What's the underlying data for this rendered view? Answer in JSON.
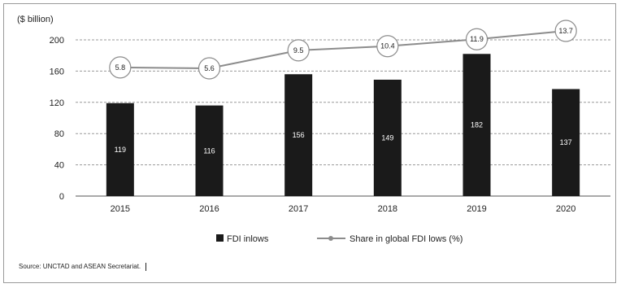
{
  "chart_data": {
    "type": "bar",
    "categories": [
      "2015",
      "2016",
      "2017",
      "2018",
      "2019",
      "2020"
    ],
    "series": [
      {
        "name": "FDI inlows",
        "type": "bar",
        "values": [
          119,
          116,
          156,
          149,
          182,
          137
        ],
        "labels": [
          "119",
          "116",
          "156",
          "149",
          "182",
          "137"
        ],
        "color": "#1a1a1a"
      },
      {
        "name": "Share in global FDI lows (%)",
        "type": "line",
        "values": [
          5.8,
          5.6,
          9.5,
          10.4,
          11.9,
          13.7
        ],
        "labels": [
          "5.8",
          "5.6",
          "9.5",
          "10.4",
          "11.9",
          "13.7"
        ],
        "color": "#8c8c8c"
      }
    ],
    "ylabel": "($ billion)",
    "ylim": [
      0,
      200
    ],
    "yticks": [
      "0",
      "40",
      "80",
      "120",
      "160",
      "200"
    ],
    "grid": true,
    "legend": "bottom"
  },
  "source": "Source:  UNCTAD and ASEAN  Secretariat."
}
